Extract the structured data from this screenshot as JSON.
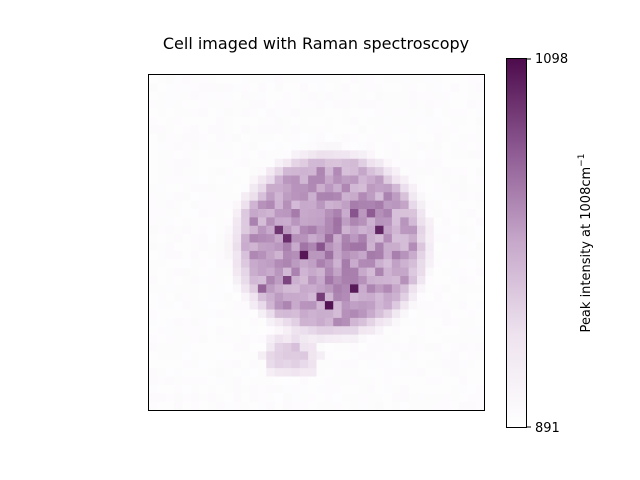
{
  "chart_data": {
    "type": "heatmap",
    "title": "Cell imaged with Raman spectroscopy",
    "xlabel": "",
    "ylabel": "",
    "colorbar": {
      "label_main": "Peak intensity at 1008cm",
      "label_sup": "−1",
      "min": 891,
      "max": 1098,
      "tick_labels": [
        "1098",
        "891"
      ],
      "colormap": "white-to-purple"
    },
    "grid": false,
    "colors": {
      "low": "#ffffff",
      "high": "#4d0b4c",
      "frame": "#000000"
    },
    "cell_shape": {
      "grid_size": 40,
      "center_x": 21.2,
      "center_y": 19.8,
      "radius_x": 11.0,
      "radius_y": 10.5,
      "tail_center_x": 16.5,
      "tail_center_y": 33.0,
      "tail_radius_x": 3.6,
      "tail_radius_y": 2.8
    },
    "hotspots": [
      {
        "x": 15,
        "y": 18,
        "value": 1070
      },
      {
        "x": 16,
        "y": 19,
        "value": 1075
      },
      {
        "x": 18,
        "y": 21,
        "value": 1090
      },
      {
        "x": 20,
        "y": 20,
        "value": 1050
      },
      {
        "x": 21,
        "y": 27,
        "value": 1092
      },
      {
        "x": 20,
        "y": 26,
        "value": 1065
      },
      {
        "x": 24,
        "y": 25,
        "value": 1088
      },
      {
        "x": 27,
        "y": 18,
        "value": 1080
      },
      {
        "x": 26,
        "y": 16,
        "value": 1045
      },
      {
        "x": 13,
        "y": 25,
        "value": 1040
      },
      {
        "x": 16,
        "y": 24,
        "value": 1060
      },
      {
        "x": 24,
        "y": 16,
        "value": 1050
      }
    ]
  }
}
